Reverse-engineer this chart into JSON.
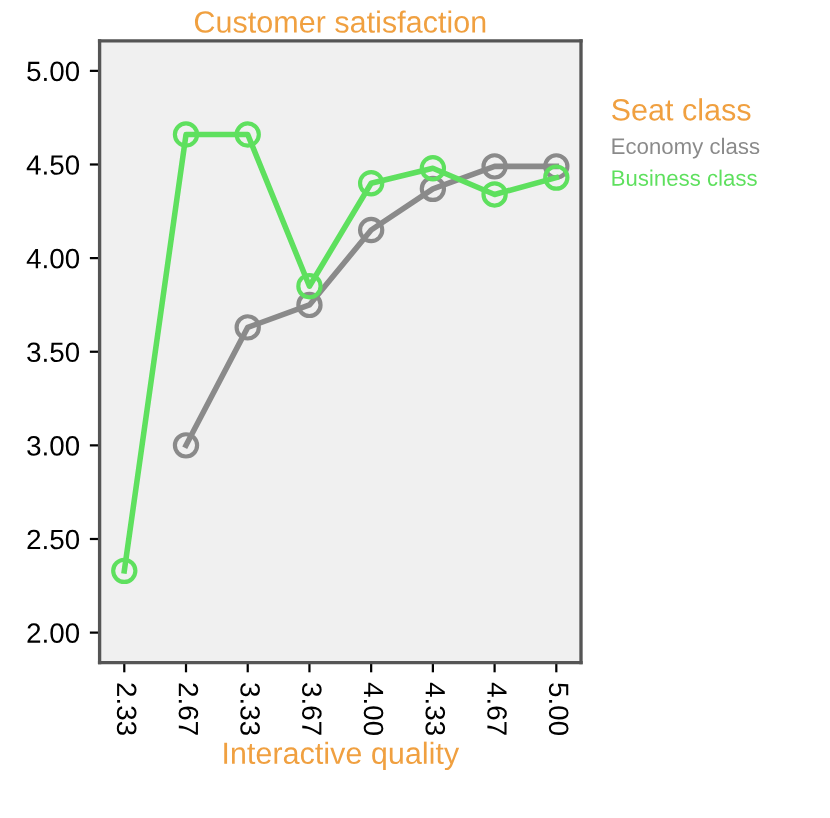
{
  "chart_data": {
    "type": "line",
    "title": "Customer satisfaction",
    "xlabel": "Interactive quality",
    "legend_title": "Seat class",
    "categories": [
      "2.33",
      "2.67",
      "3.33",
      "3.67",
      "4.00",
      "4.33",
      "4.67",
      "5.00"
    ],
    "series": [
      {
        "name": "Economy class",
        "color": "#8a8a8a",
        "values": [
          null,
          3.0,
          3.63,
          3.75,
          4.15,
          4.37,
          4.49,
          4.49
        ]
      },
      {
        "name": "Business class",
        "color": "#5ee05e",
        "values": [
          2.33,
          4.66,
          4.66,
          3.85,
          4.4,
          4.48,
          4.34,
          4.43
        ]
      }
    ],
    "ylim": [
      1.84,
      5.16
    ],
    "yticks": [
      {
        "value": 2,
        "label": "2.00"
      },
      {
        "value": 2.5,
        "label": "2.50"
      },
      {
        "value": 3,
        "label": "3.00"
      },
      {
        "value": 3.5,
        "label": "3.50"
      },
      {
        "value": 4,
        "label": "4.00"
      },
      {
        "value": 4.5,
        "label": "4.50"
      },
      {
        "value": 5,
        "label": "5.00"
      }
    ],
    "grid": false,
    "legend": "right",
    "marker": "circle",
    "line_style": "solid"
  }
}
